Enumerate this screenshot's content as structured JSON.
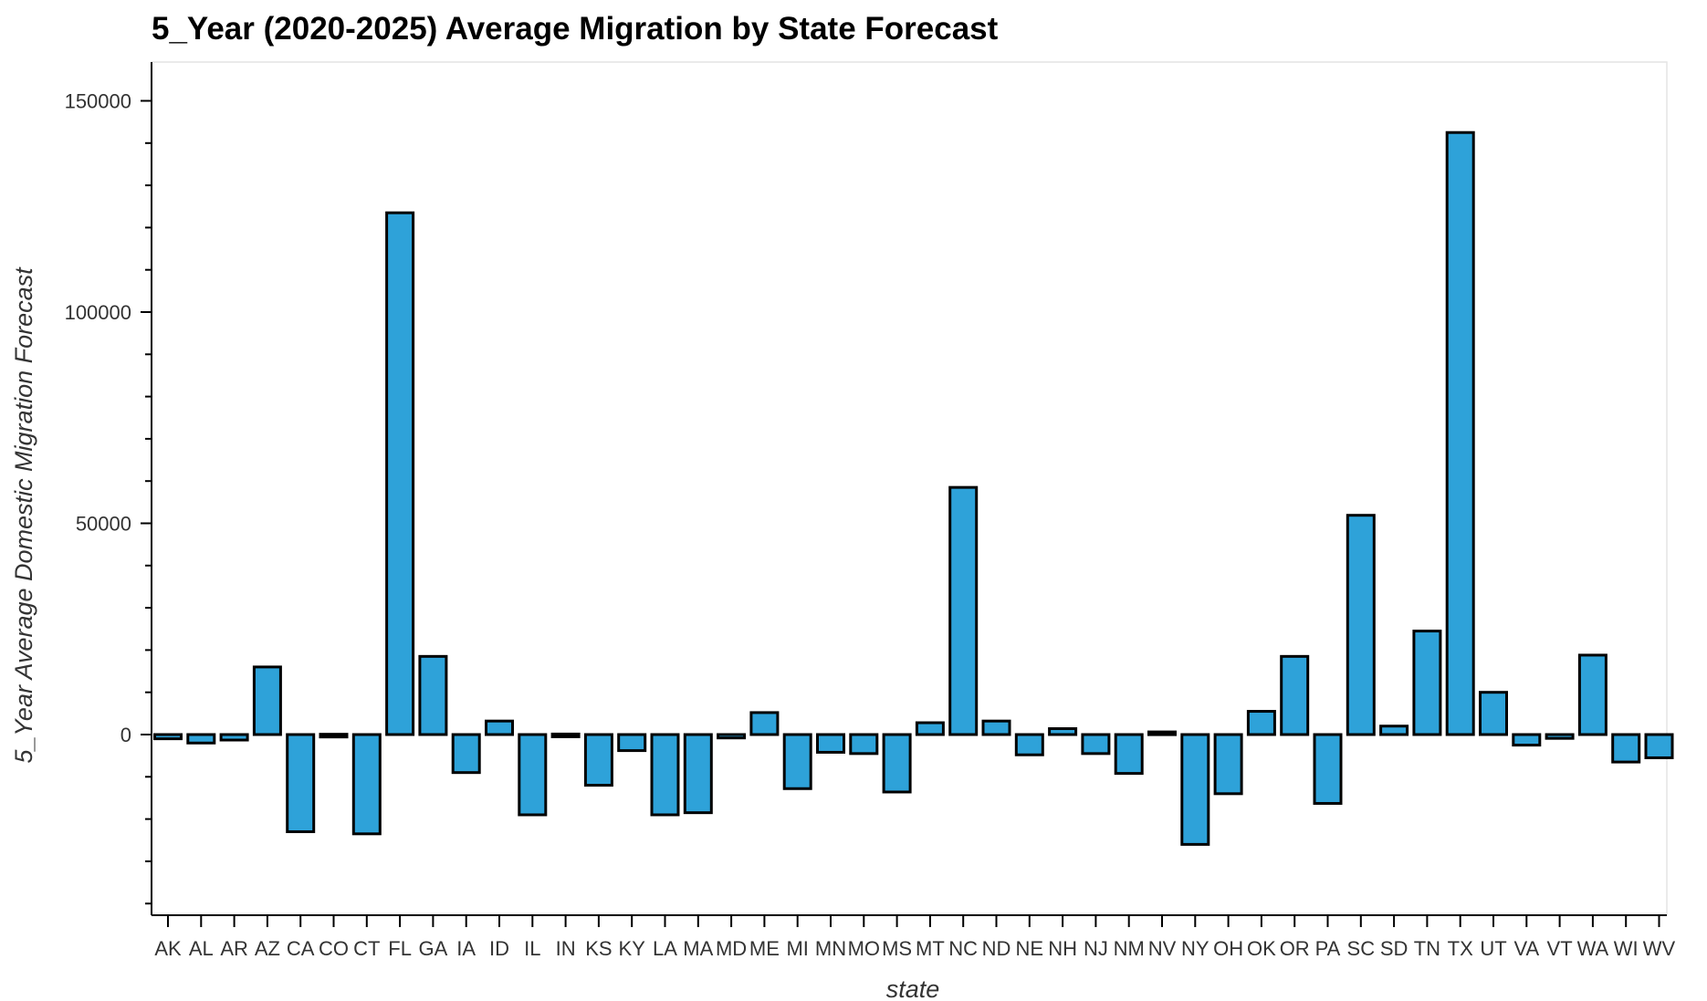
{
  "chart_data": {
    "type": "bar",
    "title": "5_Year (2020-2025) Average Migration by State Forecast",
    "xlabel": "state",
    "ylabel": "5_Year Average Domestic Migration Forecast",
    "ylim": [
      -42000,
      160000
    ],
    "yticks": [
      0,
      50000,
      100000,
      150000
    ],
    "grid": false,
    "bar_color": "#2ea2d9",
    "bar_edge_color": "#000000",
    "categories": [
      "AK",
      "AL",
      "AR",
      "AZ",
      "CA",
      "CO",
      "CT",
      "FL",
      "GA",
      "IA",
      "ID",
      "IL",
      "IN",
      "KS",
      "KY",
      "LA",
      "MA",
      "MD",
      "ME",
      "MI",
      "MN",
      "MO",
      "MS",
      "MT",
      "NC",
      "ND",
      "NE",
      "NH",
      "NJ",
      "NM",
      "NV",
      "NY",
      "OH",
      "OK",
      "OR",
      "PA",
      "SC",
      "SD",
      "TN",
      "TX",
      "UT",
      "VA",
      "VT",
      "WA",
      "WI",
      "WV"
    ],
    "values": [
      -1000,
      -2000,
      -1300,
      16000,
      -23000,
      -500,
      -23500,
      123500,
      18500,
      -9000,
      3200,
      -19000,
      -400,
      -12000,
      -3800,
      -19000,
      -18500,
      -800,
      5200,
      -12800,
      -4200,
      -4500,
      -13600,
      2800,
      58500,
      3200,
      -4800,
      1400,
      -4500,
      -9200,
      600,
      -26000,
      -14000,
      5500,
      18500,
      -16300,
      51900,
      2000,
      24500,
      142500,
      10000,
      -2500,
      -900,
      18800,
      -6500,
      -5500
    ]
  }
}
